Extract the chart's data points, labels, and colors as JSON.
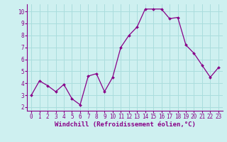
{
  "x": [
    0,
    1,
    2,
    3,
    4,
    5,
    6,
    7,
    8,
    9,
    10,
    11,
    12,
    13,
    14,
    15,
    16,
    17,
    18,
    19,
    20,
    21,
    22,
    23
  ],
  "y": [
    3.0,
    4.2,
    3.8,
    3.3,
    3.9,
    2.7,
    2.2,
    4.6,
    4.8,
    3.3,
    4.5,
    7.0,
    8.0,
    8.7,
    10.2,
    10.2,
    10.2,
    9.4,
    9.5,
    7.2,
    6.5,
    5.5,
    4.5,
    5.3
  ],
  "line_color": "#880088",
  "marker": "D",
  "markersize": 2.0,
  "linewidth": 0.9,
  "xlabel": "Windchill (Refroidissement éolien,°C)",
  "xlim": [
    -0.5,
    23.5
  ],
  "ylim": [
    1.7,
    10.6
  ],
  "xticks": [
    0,
    1,
    2,
    3,
    4,
    5,
    6,
    7,
    8,
    9,
    10,
    11,
    12,
    13,
    14,
    15,
    16,
    17,
    18,
    19,
    20,
    21,
    22,
    23
  ],
  "yticks": [
    2,
    3,
    4,
    5,
    6,
    7,
    8,
    9,
    10
  ],
  "background_color": "#cef0f0",
  "grid_color": "#aadddd",
  "tick_fontsize": 5.5,
  "xlabel_fontsize": 6.5
}
